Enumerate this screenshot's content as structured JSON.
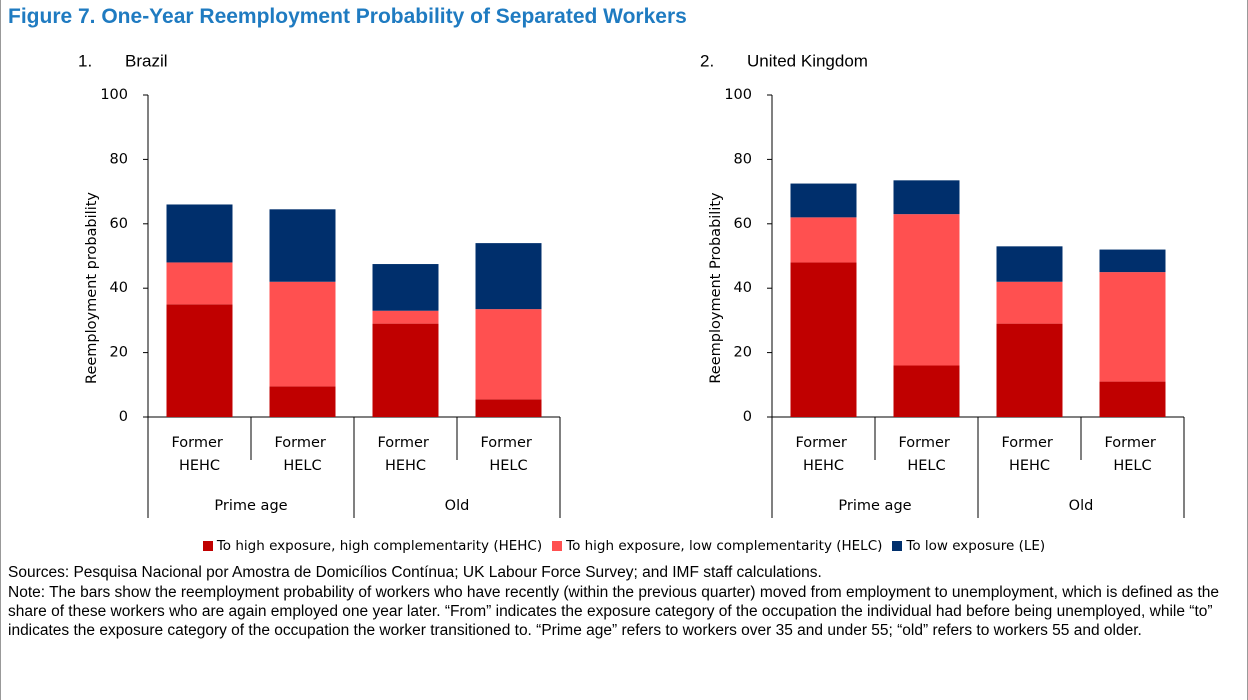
{
  "title": "Figure 7. One-Year Reemployment Probability of Separated Workers",
  "chart_data": [
    {
      "type": "stacked_bar",
      "label": "1.",
      "title": "Brazil",
      "ylabel": "Reemployment probability",
      "groups": [
        {
          "name": "Prime age",
          "categories": [
            "Former HEHC",
            "Former HELC"
          ]
        },
        {
          "name": "Old",
          "categories": [
            "Former HEHC",
            "Former HELC"
          ]
        }
      ],
      "series": [
        {
          "name": "To high exposure, high complementarity (HEHC)",
          "color": "#c00000",
          "values": [
            35,
            9.5,
            29,
            5.5
          ]
        },
        {
          "name": "To high exposure, low complementarity (HELC)",
          "color": "#ff5050",
          "values": [
            13,
            32.5,
            4,
            28
          ]
        },
        {
          "name": "To low exposure (LE)",
          "color": "#002f6c",
          "values": [
            18,
            22.5,
            14.5,
            20.5
          ]
        }
      ],
      "ylim": [
        0,
        100
      ],
      "yticks": [
        0,
        20,
        40,
        60,
        80,
        100
      ]
    },
    {
      "type": "stacked_bar",
      "label": "2.",
      "title": "United Kingdom",
      "ylabel": "Reemployment Probability",
      "groups": [
        {
          "name": "Prime age",
          "categories": [
            "Former HEHC",
            "Former HELC"
          ]
        },
        {
          "name": "Old",
          "categories": [
            "Former HEHC",
            "Former HELC"
          ]
        }
      ],
      "series": [
        {
          "name": "To high exposure, high complementarity (HEHC)",
          "color": "#c00000",
          "values": [
            48,
            16,
            29,
            11
          ]
        },
        {
          "name": "To high exposure, low complementarity (HELC)",
          "color": "#ff5050",
          "values": [
            14,
            47,
            13,
            34
          ]
        },
        {
          "name": "To low exposure (LE)",
          "color": "#002f6c",
          "values": [
            10.5,
            10.5,
            11,
            7
          ]
        }
      ],
      "ylim": [
        0,
        100
      ],
      "yticks": [
        0,
        20,
        40,
        60,
        80,
        100
      ]
    }
  ],
  "sources": "Sources: Pesquisa Nacional por Amostra de Domicílios Contínua; UK Labour Force Survey; and IMF staff calculations.",
  "note": "Note: The bars show the reemployment probability of workers who have recently (within the previous quarter) moved from employment to unemployment, which is defined as the share of these workers who are again employed one year later. “From” indicates the exposure category of the occupation the individual had before being unemployed, while “to” indicates the exposure category of the occupation the worker transitioned to. “Prime age” refers to workers over 35 and under 55; “old” refers to workers 55 and older."
}
